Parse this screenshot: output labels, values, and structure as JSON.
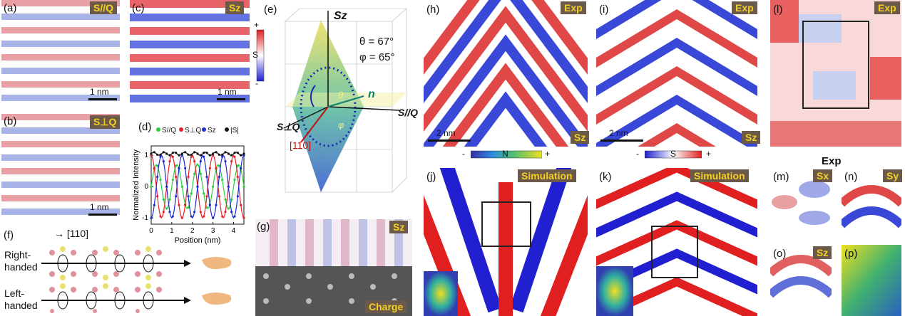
{
  "panels": {
    "a": {
      "label": "(a)",
      "tag": "S//Q",
      "scale": "1 nm"
    },
    "b": {
      "label": "(b)",
      "tag": "S⊥Q",
      "scale": "1 nm"
    },
    "c": {
      "label": "(c)",
      "tag": "Sz",
      "scale": "1 nm"
    },
    "d": {
      "label": "(d)",
      "legend": [
        "S//Q",
        "S⊥Q",
        "Sz",
        "|S|"
      ],
      "ylabel": "Normalized Intensity",
      "xlabel": "Position (nm)"
    },
    "e": {
      "label": "(e)",
      "axis_z": "Sz",
      "axis_q": "S//Q",
      "axis_perp": "S⊥Q",
      "theta_text": "θ = 67°",
      "phi_text": "φ = 65°",
      "n_label": "n",
      "dir_label": "[110]",
      "theta_sym": "θ",
      "phi_sym": "φ"
    },
    "f": {
      "label": "(f)",
      "dir": "→ [110]",
      "right": "Right-handed",
      "left": "Left-handed"
    },
    "g": {
      "label": "(g)",
      "tag": "Sz",
      "tag2": "Charge"
    },
    "h": {
      "label": "(h)",
      "tag": "Exp",
      "tag2": "Sz",
      "scale": "2 nm"
    },
    "i": {
      "label": "(i)",
      "tag": "Exp",
      "tag2": "Sz",
      "scale": "2 nm"
    },
    "j": {
      "label": "(j)",
      "tag": "Simulation"
    },
    "k": {
      "label": "(k)",
      "tag": "Simulation"
    },
    "l": {
      "label": "(l)",
      "tag": "Exp"
    },
    "m": {
      "label": "(m)",
      "tag": "Sx"
    },
    "n": {
      "label": "(n)",
      "tag": "Sy"
    },
    "o": {
      "label": "(o)",
      "tag": "Sz"
    },
    "p": {
      "label": "(p)"
    },
    "exp_heading": "Exp",
    "cbar_n": {
      "minus": "-",
      "label": "N",
      "plus": "+"
    },
    "cbar_s": {
      "minus": "-",
      "label": "S",
      "plus": "+"
    },
    "cbar_c": {
      "plus": "+",
      "label": "S",
      "minus": "-"
    }
  },
  "chart_data": {
    "type": "line",
    "title": "",
    "xlabel": "Position (nm)",
    "ylabel": "Normalized Intensity",
    "xlim": [
      0,
      4.5
    ],
    "ylim": [
      -1.2,
      1.3
    ],
    "xticks": [
      0,
      1,
      2,
      3,
      4
    ],
    "yticks": [
      -1,
      0,
      1
    ],
    "period_nm": 1.0,
    "series": [
      {
        "name": "S//Q",
        "color": "#2ecc40",
        "phase_nm": 0.25,
        "amplitude": 0.7
      },
      {
        "name": "S⊥Q",
        "color": "#e8202a",
        "phase_nm": 0.0,
        "amplitude": 1.0
      },
      {
        "name": "Sz",
        "color": "#1a2bd0",
        "phase_nm": 0.5,
        "amplitude": 1.0
      },
      {
        "name": "|S|",
        "color": "#111111",
        "constant": 1.05
      }
    ]
  }
}
